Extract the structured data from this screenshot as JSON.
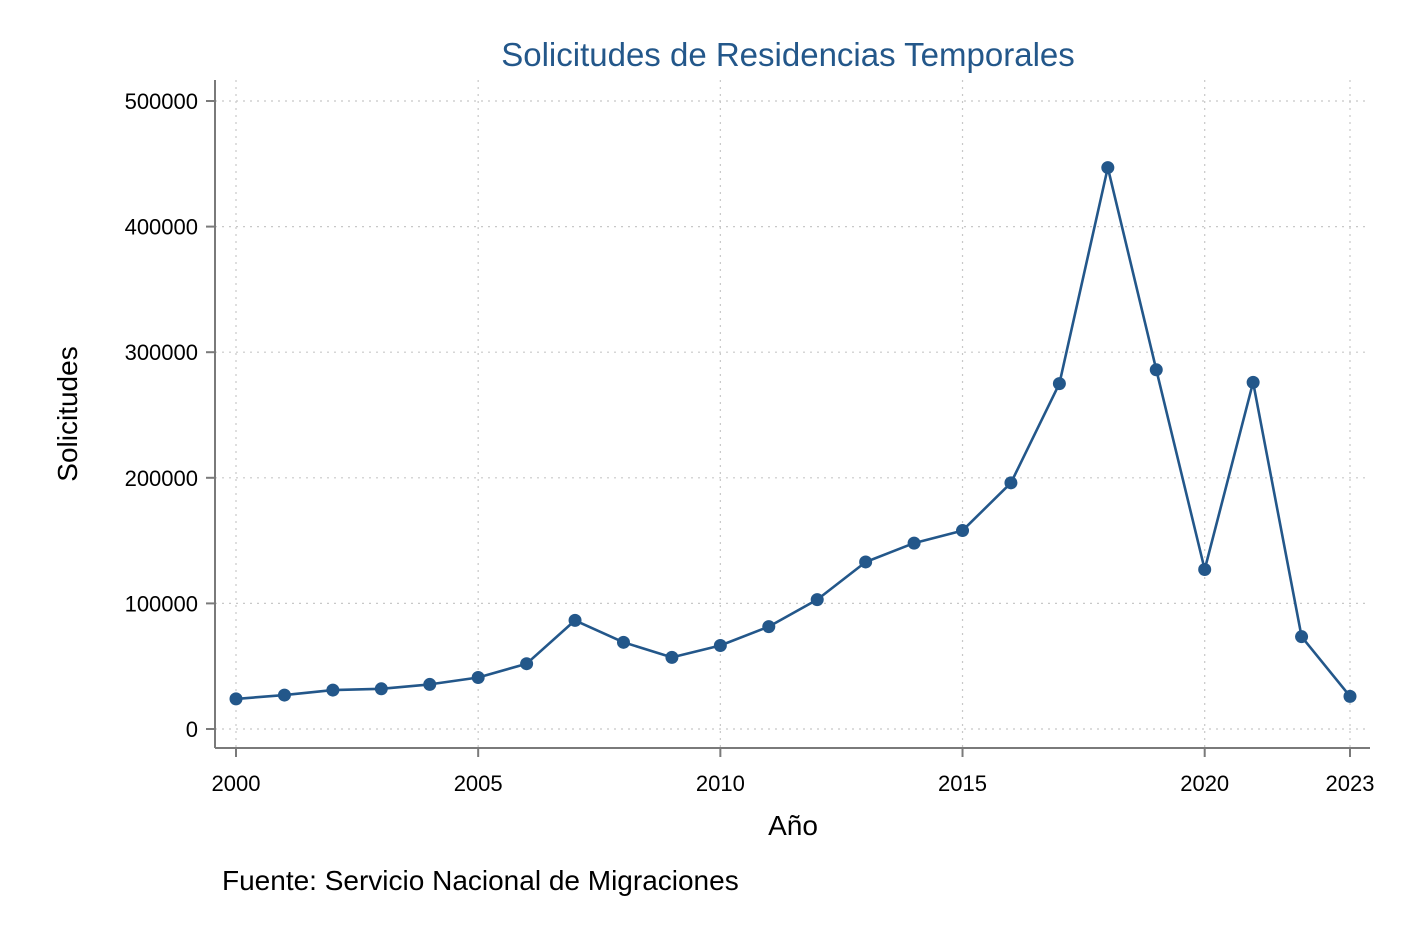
{
  "chart_data": {
    "type": "line",
    "title": "Solicitudes de Residencias Temporales",
    "xlabel": "Año",
    "ylabel": "Solicitudes",
    "note": "Fuente: Servicio Nacional de Migraciones",
    "color": "#23578a",
    "grid": true,
    "xlim": [
      2000,
      2023
    ],
    "ylim": [
      0,
      500000
    ],
    "xticks": [
      2000,
      2005,
      2010,
      2015,
      2020,
      2023
    ],
    "yticks": [
      0,
      100000,
      200000,
      300000,
      400000,
      500000
    ],
    "x": [
      2000,
      2001,
      2002,
      2003,
      2004,
      2005,
      2006,
      2007,
      2008,
      2009,
      2010,
      2011,
      2012,
      2013,
      2014,
      2015,
      2016,
      2017,
      2018,
      2019,
      2020,
      2021,
      2022,
      2023
    ],
    "y": [
      24000,
      27000,
      31000,
      32000,
      35500,
      41000,
      52000,
      86500,
      69000,
      57000,
      66500,
      81500,
      103000,
      133000,
      148000,
      158000,
      196000,
      275000,
      447000,
      286000,
      127000,
      276000,
      73500,
      26000
    ]
  }
}
